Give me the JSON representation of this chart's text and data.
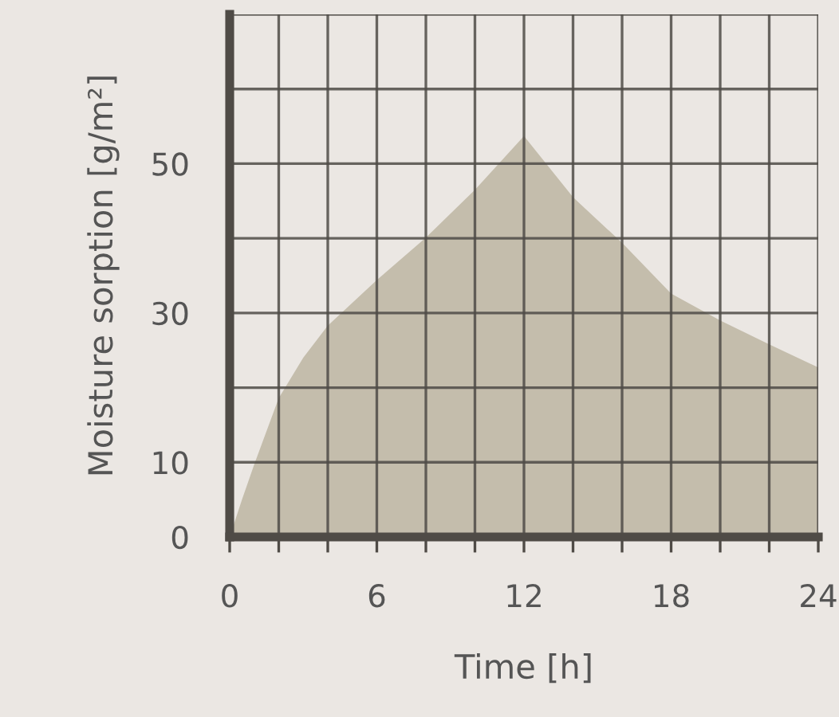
{
  "chart_data": {
    "type": "area",
    "xlabel": "Time [h]",
    "ylabel": "Moisture sorption [g/m²]",
    "x": [
      0,
      0.5,
      1,
      2,
      3,
      4,
      6,
      8,
      10,
      12,
      14,
      16,
      18,
      20,
      22,
      24
    ],
    "series": [
      {
        "color": "#c4bdac",
        "values": [
          0,
          5,
          9.7,
          18.6,
          24,
          28.3,
          34.4,
          40.1,
          46.5,
          53.7,
          45.5,
          39.4,
          32.6,
          29,
          25.8,
          22.7
        ]
      }
    ],
    "xlim": [
      0,
      24
    ],
    "ylim": [
      0,
      70
    ],
    "xticks": [
      0,
      {
        "value": 2,
        "label": null
      },
      {
        "value": 4,
        "label": null
      },
      6,
      {
        "value": 8,
        "label": null
      },
      {
        "value": 10,
        "label": null
      },
      12,
      {
        "value": 14,
        "label": null
      },
      {
        "value": 16,
        "label": null
      },
      18,
      {
        "value": 20,
        "label": null
      },
      {
        "value": 22,
        "label": null
      },
      24
    ],
    "yticks": [
      0,
      10,
      {
        "value": 20,
        "label": null
      },
      30,
      {
        "value": 40,
        "label": null
      },
      50,
      {
        "value": 60,
        "label": null
      },
      {
        "value": 70,
        "label": null
      }
    ],
    "grid": true
  }
}
